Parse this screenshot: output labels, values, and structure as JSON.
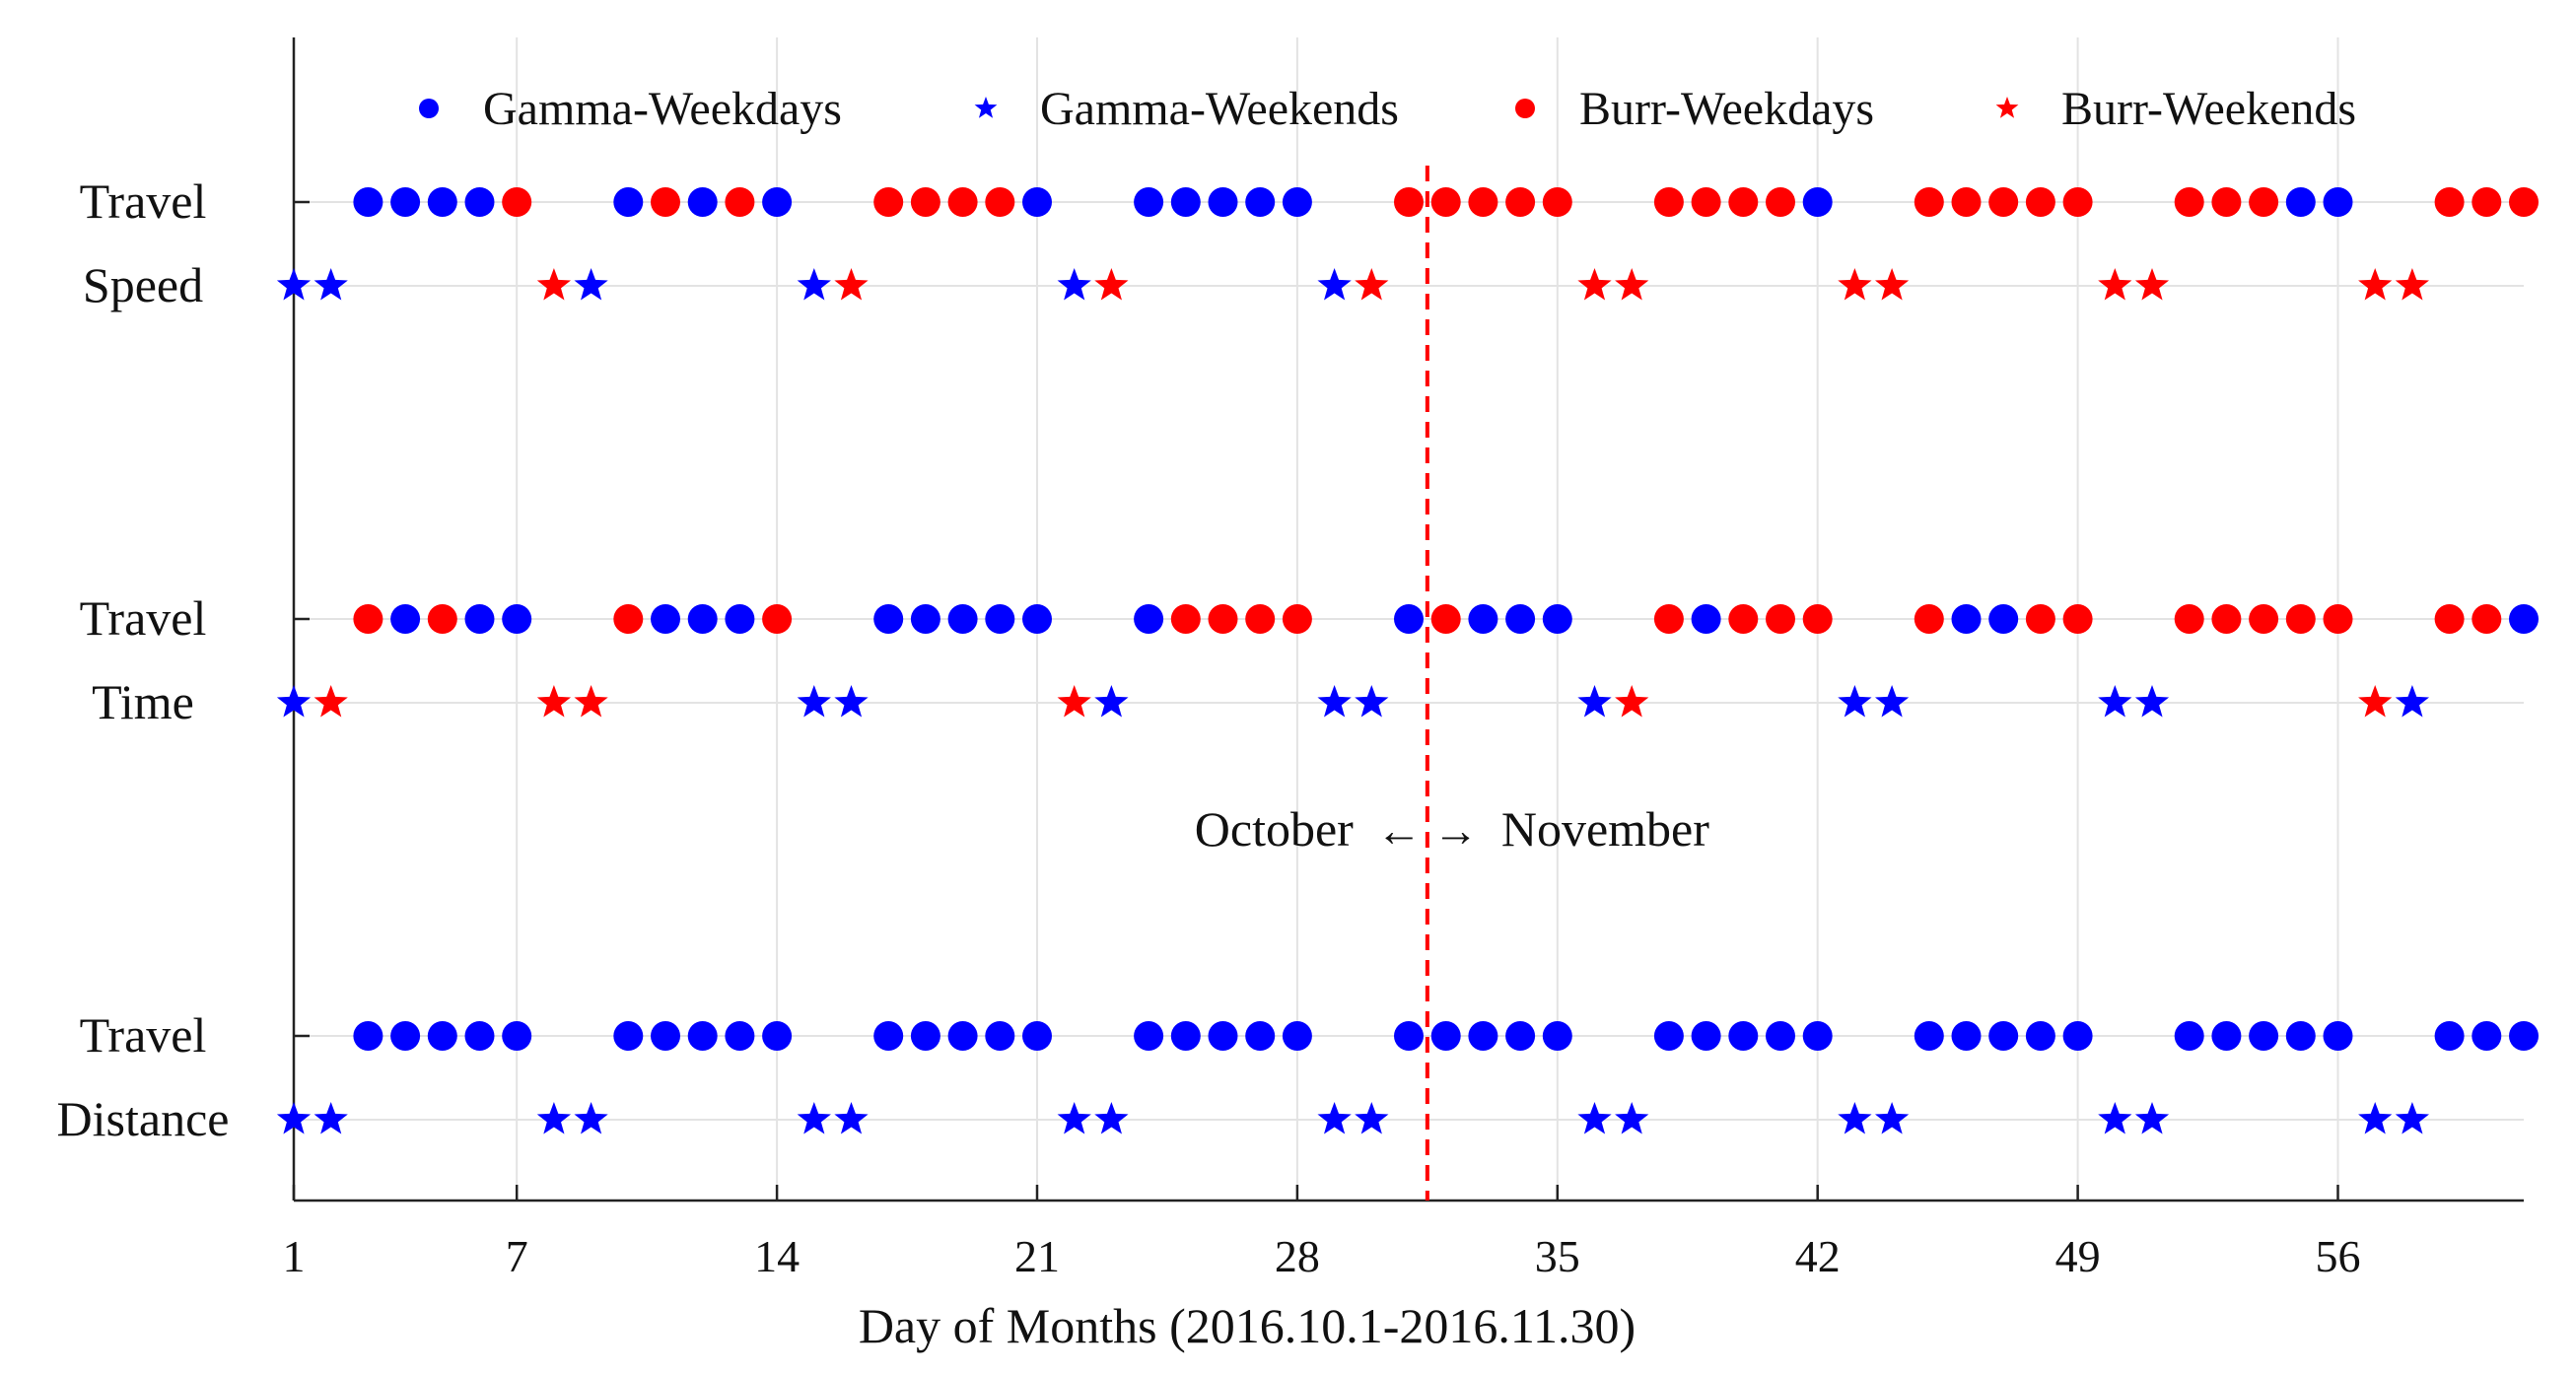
{
  "chart_data": {
    "type": "scatter",
    "xlabel": "Day of Months (2016.10.1-2016.11.30)",
    "ylabel": "",
    "x_ticks": [
      1,
      7,
      14,
      21,
      28,
      35,
      42,
      49,
      56
    ],
    "xlim": [
      1,
      61
    ],
    "grid": true,
    "legend_position": "top",
    "legend": [
      {
        "name": "Gamma-Weekdays",
        "marker": "circle",
        "color": "#0000ff"
      },
      {
        "name": "Gamma-Weekends",
        "marker": "star",
        "color": "#0000ff"
      },
      {
        "name": "Burr-Weekdays",
        "marker": "circle",
        "color": "#ff0000"
      },
      {
        "name": "Burr-Weekends",
        "marker": "star",
        "color": "#ff0000"
      }
    ],
    "colors": {
      "gamma": "#0000ff",
      "burr": "#ff0000",
      "divider": "#ff0000"
    },
    "categories": [
      {
        "key": "speed",
        "label_lines": [
          "Travel",
          "Speed"
        ]
      },
      {
        "key": "time",
        "label_lines": [
          "Travel",
          "Time"
        ]
      },
      {
        "key": "distance",
        "label_lines": [
          "Travel",
          "Distance"
        ]
      }
    ],
    "month_divider": {
      "x": 31.5,
      "label_left": "October",
      "label_right": "November",
      "arrows": "← →"
    },
    "weekend_days": [
      1,
      2,
      8,
      9,
      15,
      16,
      22,
      23,
      29,
      30,
      36,
      37,
      43,
      44,
      50,
      51,
      57,
      58
    ],
    "series": {
      "speed": {
        "weekdays": {
          "days": [
            3,
            4,
            5,
            6,
            7,
            10,
            11,
            12,
            13,
            14,
            17,
            18,
            19,
            20,
            21,
            24,
            25,
            26,
            27,
            28,
            31,
            32,
            33,
            34,
            35,
            38,
            39,
            40,
            41,
            42,
            45,
            46,
            47,
            48,
            49,
            52,
            53,
            54,
            55,
            56,
            59,
            60,
            61
          ],
          "dist": "GGGGBGBGBGBBBBGGGGGGBBBBBBBBBGBBBBBBBBGGBBB"
        },
        "weekends": {
          "days": [
            1,
            2,
            8,
            9,
            15,
            16,
            22,
            23,
            29,
            30,
            36,
            37,
            43,
            44,
            50,
            51,
            57,
            58
          ],
          "dist": "GGBGGBGBGBBBBBBBBB"
        }
      },
      "time": {
        "weekdays": {
          "days": [
            3,
            4,
            5,
            6,
            7,
            10,
            11,
            12,
            13,
            14,
            17,
            18,
            19,
            20,
            21,
            24,
            25,
            26,
            27,
            28,
            31,
            32,
            33,
            34,
            35,
            38,
            39,
            40,
            41,
            42,
            45,
            46,
            47,
            48,
            49,
            52,
            53,
            54,
            55,
            56,
            59,
            60,
            61
          ],
          "dist": "BGBGGBGGGBGGGGGGBBBBGBGGGBGBBBBGGBBBBBBBBBG"
        },
        "weekends": {
          "days": [
            1,
            2,
            8,
            9,
            15,
            16,
            22,
            23,
            29,
            30,
            36,
            37,
            43,
            44,
            50,
            51,
            57,
            58
          ],
          "dist": "GBBBGGBGGGGBGGGGBG"
        }
      },
      "distance": {
        "weekdays": {
          "days": [
            3,
            4,
            5,
            6,
            7,
            10,
            11,
            12,
            13,
            14,
            17,
            18,
            19,
            20,
            21,
            24,
            25,
            26,
            27,
            28,
            31,
            32,
            33,
            34,
            35,
            38,
            39,
            40,
            41,
            42,
            45,
            46,
            47,
            48,
            49,
            52,
            53,
            54,
            55,
            56,
            59,
            60,
            61
          ],
          "dist": "GGGGGGGGGGGGGGGGGGGGGGGGGGGGGGGGGGGGGGGGGGG"
        },
        "weekends": {
          "days": [
            1,
            2,
            8,
            9,
            15,
            16,
            22,
            23,
            29,
            30,
            36,
            37,
            43,
            44,
            50,
            51,
            57,
            58
          ],
          "dist": "GGGGGGGGGGGGGGGGGG"
        }
      }
    }
  }
}
